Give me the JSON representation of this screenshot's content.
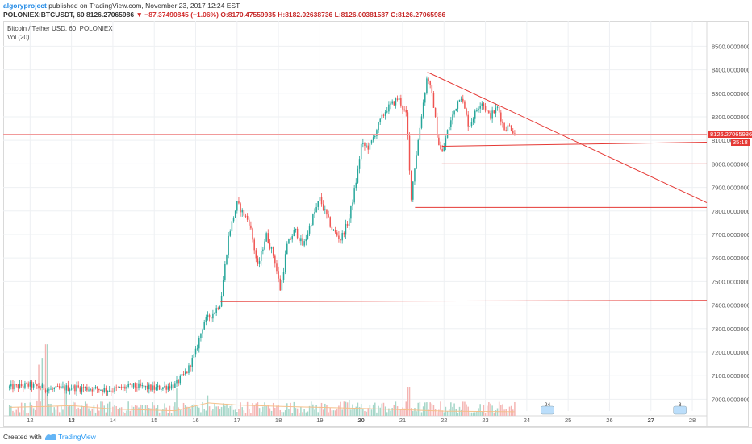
{
  "header": {
    "author": "algoryproject",
    "published_text": "published on TradingView.com, November 23, 2017 12:24 EST",
    "symbol": "POLONIEX:BTCUSDT, 60",
    "last": "8126.27065986",
    "change_icon": "down-triangle-icon",
    "change": "−87.37490845 (−1.06%)",
    "open": "O:8170.47559935",
    "high": "H:8182.02638736",
    "low": "L:8126.00381587",
    "close": "C:8126.27065986"
  },
  "legend": {
    "title": "Bitcoin / Tether USD, 60, POLONIEX",
    "volume": "Vol (20)"
  },
  "price_tags": {
    "last_price": "8126.27065986",
    "countdown": "35:18"
  },
  "footer": {
    "created_with": "Created with",
    "brand": "TradingView"
  },
  "colors": {
    "up": "#26a69a",
    "down": "#ef5350",
    "up_volume": "#a5d6c8",
    "down_volume": "#f4b4b2",
    "drawing": "#e53935",
    "ma": "#f5c08a"
  },
  "chart_data": {
    "type": "candlestick",
    "interval": "60",
    "ylim": [
      6950,
      8580
    ],
    "y_ticks": [
      "8500.00000000",
      "8400.00000000",
      "8300.00000000",
      "8200.00000000",
      "8100.00000000",
      "8000.00000000",
      "7900.00000000",
      "7800.00000000",
      "7700.00000000",
      "7600.00000000",
      "7500.00000000",
      "7400.00000000",
      "7300.00000000",
      "7200.00000000",
      "7100.00000000",
      "7000.00000000"
    ],
    "x_ticks": [
      "12",
      "13",
      "14",
      "15",
      "16",
      "17",
      "18",
      "19",
      "20",
      "21",
      "22",
      "23",
      "24",
      "25",
      "26",
      "27",
      "28"
    ],
    "x_range_days": [
      11.35,
      28.35
    ],
    "last_price": 8126.27,
    "keyframes": [
      [
        11.5,
        7050
      ],
      [
        12.0,
        7060
      ],
      [
        12.5,
        7040
      ],
      [
        13.0,
        7050
      ],
      [
        13.5,
        7045
      ],
      [
        14.0,
        7040
      ],
      [
        14.5,
        7055
      ],
      [
        15.0,
        7045
      ],
      [
        15.5,
        7060
      ],
      [
        15.8,
        7120
      ],
      [
        16.0,
        7200
      ],
      [
        16.2,
        7330
      ],
      [
        16.4,
        7360
      ],
      [
        16.6,
        7410
      ],
      [
        16.8,
        7700
      ],
      [
        17.0,
        7830
      ],
      [
        17.3,
        7750
      ],
      [
        17.5,
        7560
      ],
      [
        17.7,
        7700
      ],
      [
        17.9,
        7600
      ],
      [
        18.05,
        7460
      ],
      [
        18.2,
        7650
      ],
      [
        18.4,
        7720
      ],
      [
        18.6,
        7650
      ],
      [
        18.8,
        7760
      ],
      [
        19.0,
        7850
      ],
      [
        19.3,
        7720
      ],
      [
        19.5,
        7680
      ],
      [
        19.7,
        7760
      ],
      [
        19.9,
        7950
      ],
      [
        20.0,
        8080
      ],
      [
        20.2,
        8070
      ],
      [
        20.4,
        8160
      ],
      [
        20.6,
        8230
      ],
      [
        20.9,
        8280
      ],
      [
        21.1,
        8200
      ],
      [
        21.2,
        7850
      ],
      [
        21.3,
        8000
      ],
      [
        21.45,
        8200
      ],
      [
        21.6,
        8380
      ],
      [
        21.75,
        8250
      ],
      [
        21.85,
        8100
      ],
      [
        21.95,
        8040
      ],
      [
        22.1,
        8150
      ],
      [
        22.4,
        8300
      ],
      [
        22.6,
        8160
      ],
      [
        22.9,
        8270
      ],
      [
        23.1,
        8200
      ],
      [
        23.3,
        8240
      ],
      [
        23.45,
        8150
      ],
      [
        23.6,
        8160
      ],
      [
        23.72,
        8126
      ]
    ],
    "volume_spikes": [
      [
        12.2,
        150
      ],
      [
        12.3,
        170
      ],
      [
        12.4,
        210
      ],
      [
        12.85,
        90
      ],
      [
        15.55,
        80
      ],
      [
        21.15,
        85
      ],
      [
        19.7,
        45
      ],
      [
        16.3,
        60
      ]
    ],
    "volume_ma_levels": [
      [
        11.5,
        25
      ],
      [
        12.5,
        28
      ],
      [
        13.0,
        30
      ],
      [
        14.0,
        20
      ],
      [
        15.5,
        15
      ],
      [
        16.3,
        38
      ],
      [
        17.0,
        32
      ],
      [
        18.0,
        28
      ],
      [
        20.0,
        22
      ],
      [
        21.0,
        18
      ],
      [
        22.0,
        14
      ],
      [
        23.7,
        12
      ]
    ],
    "volume_ylim": [
      0,
      260
    ],
    "drawings": {
      "trendline": {
        "from": [
          21.6,
          8390
        ],
        "to": [
          28.35,
          7835
        ]
      },
      "support_lines": [
        {
          "from": [
            21.95,
            8075
          ],
          "to": [
            28.35,
            8092
          ]
        },
        {
          "from": [
            21.95,
            8000
          ],
          "to": [
            28.35,
            8000
          ]
        },
        {
          "from": [
            21.3,
            7815
          ],
          "to": [
            28.35,
            7815
          ]
        },
        {
          "from": [
            16.6,
            7415
          ],
          "to": [
            28.35,
            7420
          ]
        }
      ],
      "last_price_line": 8126.27
    },
    "event_markers": [
      {
        "day": 24.5,
        "label": "24"
      },
      {
        "day": 27.7,
        "label": "3"
      }
    ]
  }
}
